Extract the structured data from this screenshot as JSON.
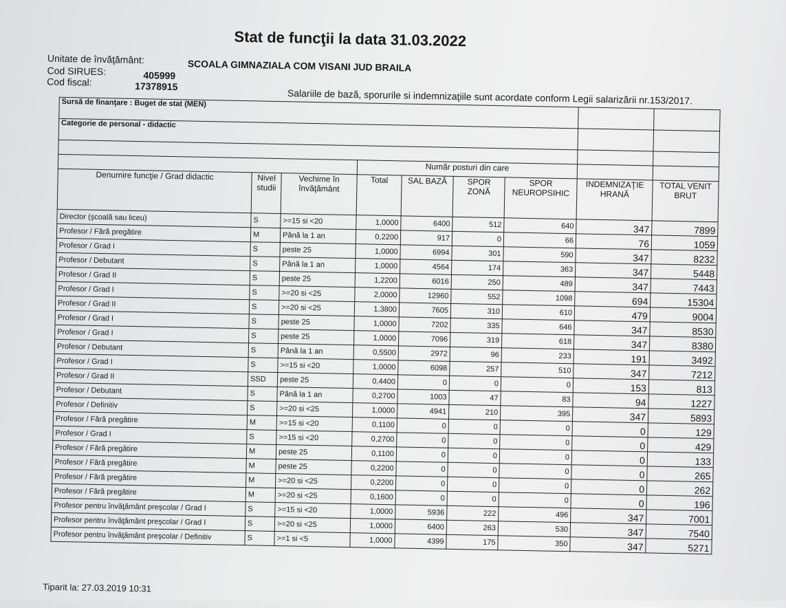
{
  "title": "Stat de funcţii la data 31.03.2022",
  "unit_label": "Unitate de învăţământ:",
  "unit_value": "SCOALA GIMNAZIALA COM VISANI JUD BRAILA",
  "sirues_label": "Cod SIRUES:",
  "sirues_value": "405999",
  "fiscal_label": "Cod fiscal:",
  "fiscal_value": "17378915",
  "law_note": "Salariile de bază, sporurile si indemnizaţiile sunt acordate conform Legii salarizării nr.153/2017.",
  "funding_source": "Sursă de finanţare : Buget de stat (MEN)",
  "staff_category": "Categorie de personal - didactic",
  "group_header": "Număr posturi din care",
  "columns": [
    "Denumire funcţie / Grad didactic",
    "Nivel studii",
    "Vechime în învăţământ",
    "Total",
    "SAL BAZĂ",
    "SPOR ZONĂ",
    "SPOR NEUROPSIHIC",
    "INDEMNIZAŢIE HRANĂ",
    "TOTAL VENIT BRUT"
  ],
  "rows": [
    [
      "Director (şcoală sau liceu)",
      "S",
      ">=15 si <20",
      "1,0000",
      "6400",
      "512",
      "640",
      "347",
      "7899"
    ],
    [
      "Profesor / Fără pregătire",
      "M",
      "Până la 1 an",
      "0,2200",
      "917",
      "0",
      "66",
      "76",
      "1059"
    ],
    [
      "Profesor / Grad I",
      "S",
      "peste 25",
      "1,0000",
      "6994",
      "301",
      "590",
      "347",
      "8232"
    ],
    [
      "Profesor / Debutant",
      "S",
      "Până la 1 an",
      "1,0000",
      "4564",
      "174",
      "363",
      "347",
      "5448"
    ],
    [
      "Profesor / Grad II",
      "S",
      "peste 25",
      "1,2200",
      "6016",
      "250",
      "489",
      "347",
      "7443"
    ],
    [
      "Profesor / Grad I",
      "S",
      ">=20 si <25",
      "2,0000",
      "12960",
      "552",
      "1098",
      "694",
      "15304"
    ],
    [
      "Profesor / Grad II",
      "S",
      ">=20 si <25",
      "1,3800",
      "7605",
      "310",
      "610",
      "479",
      "9004"
    ],
    [
      "Profesor / Grad I",
      "S",
      "peste 25",
      "1,0000",
      "7202",
      "335",
      "646",
      "347",
      "8530"
    ],
    [
      "Profesor / Grad I",
      "S",
      "peste 25",
      "1,0000",
      "7096",
      "319",
      "618",
      "347",
      "8380"
    ],
    [
      "Profesor / Debutant",
      "S",
      "Până la 1 an",
      "0,5500",
      "2972",
      "96",
      "233",
      "191",
      "3492"
    ],
    [
      "Profesor / Grad I",
      "S",
      ">=15 si <20",
      "1,0000",
      "6098",
      "257",
      "510",
      "347",
      "7212"
    ],
    [
      "Profesor / Grad II",
      "SSD",
      "peste 25",
      "0,4400",
      "0",
      "0",
      "0",
      "153",
      "813"
    ],
    [
      "Profesor / Debutant",
      "S",
      "Până la 1 an",
      "0,2700",
      "1003",
      "47",
      "83",
      "94",
      "1227"
    ],
    [
      "Profesor / Definitiv",
      "S",
      ">=20 si <25",
      "1,0000",
      "4941",
      "210",
      "395",
      "347",
      "5893"
    ],
    [
      "Profesor / Fără pregătire",
      "M",
      ">=15 si <20",
      "0,1100",
      "0",
      "0",
      "0",
      "0",
      "129"
    ],
    [
      "Profesor / Grad I",
      "S",
      ">=15 si <20",
      "0,2700",
      "0",
      "0",
      "0",
      "0",
      "429"
    ],
    [
      "Profesor / Fără pregătire",
      "M",
      "peste 25",
      "0,1100",
      "0",
      "0",
      "0",
      "0",
      "133"
    ],
    [
      "Profesor / Fără pregătire",
      "M",
      "peste 25",
      "0,2200",
      "0",
      "0",
      "0",
      "0",
      "265"
    ],
    [
      "Profesor / Fără pregătire",
      "M",
      ">=20 si <25",
      "0,2200",
      "0",
      "0",
      "0",
      "0",
      "262"
    ],
    [
      "Profesor / Fără pregătire",
      "M",
      ">=20 si <25",
      "0,1600",
      "0",
      "0",
      "0",
      "0",
      "196"
    ],
    [
      "Profesor pentru învăţământ preşcolar / Grad I",
      "S",
      ">=15 si <20",
      "1,0000",
      "5936",
      "222",
      "496",
      "347",
      "7001"
    ],
    [
      "Profesor pentru învăţământ preşcolar / Grad I",
      "S",
      ">=20 si <25",
      "1,0000",
      "6400",
      "263",
      "530",
      "347",
      "7540"
    ],
    [
      "Profesor pentru învăţământ preşcolar / Definitiv",
      "S",
      ">=1 si <5",
      "1,0000",
      "4399",
      "175",
      "350",
      "347",
      "5271"
    ]
  ],
  "printed_at": "Tiparit la: 27.03.2019 10:31"
}
